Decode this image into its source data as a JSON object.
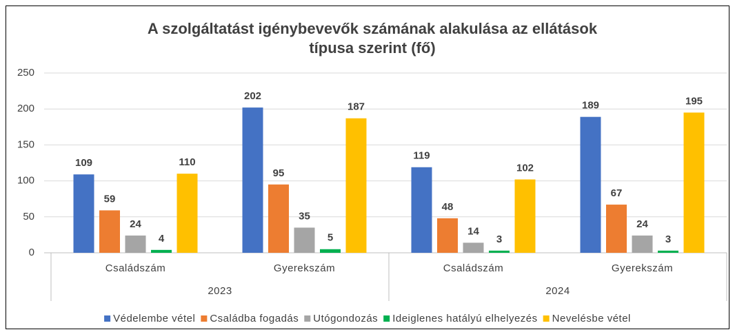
{
  "chart_data": {
    "type": "bar",
    "title": "A szolgáltatást igénybevevők számának alakulása az ellátások",
    "subtitle": "típusa szerint (fő)",
    "categories": [
      "Családszám",
      "Gyerekszám",
      "Családszám",
      "Gyerekszám"
    ],
    "category_groups": [
      "2023",
      "2024"
    ],
    "series": [
      {
        "name": "Védelembe vétel",
        "color": "#4472c4",
        "values": [
          109,
          202,
          119,
          189
        ]
      },
      {
        "name": "Családba fogadás",
        "color": "#ed7d31",
        "values": [
          59,
          95,
          48,
          67
        ]
      },
      {
        "name": "Utógondozás",
        "color": "#a5a5a5",
        "values": [
          24,
          35,
          14,
          24
        ]
      },
      {
        "name": "Ideiglenes hatályú elhelyezés",
        "color": "#00b050",
        "values": [
          4,
          5,
          3,
          3
        ]
      },
      {
        "name": "Nevelésbe vétel",
        "color": "#ffc000",
        "values": [
          110,
          187,
          102,
          195
        ]
      }
    ],
    "ylim": [
      0,
      250
    ],
    "yticks": [
      0,
      50,
      100,
      150,
      200,
      250
    ],
    "grid": true,
    "legend": "bottom"
  }
}
